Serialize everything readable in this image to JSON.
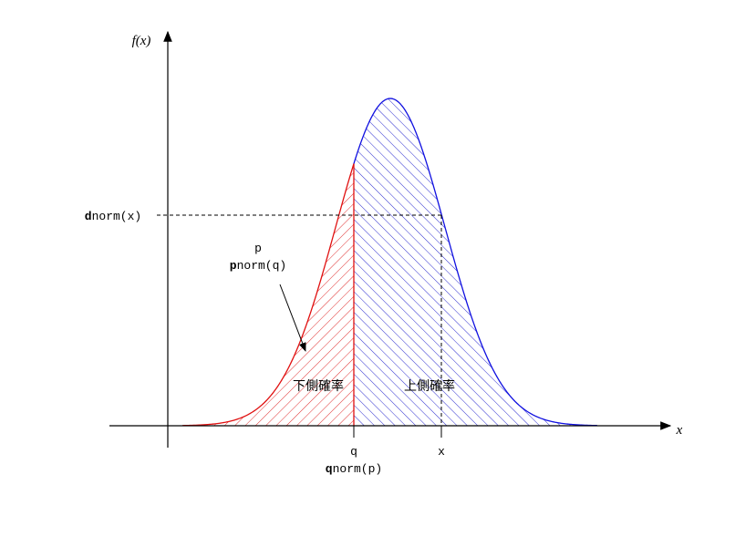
{
  "axis": {
    "y_label": "f(x)",
    "x_label": "x"
  },
  "labels": {
    "dnorm": {
      "bold": "d",
      "rest": "norm(x)"
    },
    "p": "p",
    "pnorm": {
      "bold": "p",
      "rest": "norm(q)"
    },
    "lower": "下側確率",
    "upper": "上側確率",
    "q": "q",
    "x": "x",
    "qnorm": {
      "bold": "q",
      "rest": "norm(p)"
    }
  }
}
